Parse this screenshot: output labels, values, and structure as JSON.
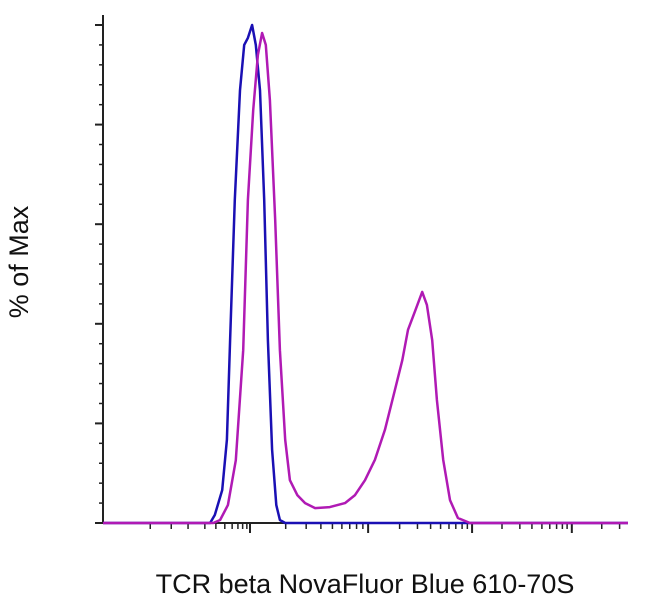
{
  "chart_data": {
    "type": "line",
    "xlabel": "TCR beta NovaFluor Blue 610-70S",
    "ylabel": "% of Max",
    "xlim": [
      0,
      100
    ],
    "ylim": [
      0,
      100
    ],
    "xticks": [
      28.0,
      50.5,
      70.3,
      89.3
    ],
    "xminorticks": [
      9.0,
      13.0,
      16.2,
      19.4,
      21.5,
      23.2,
      24.6,
      25.7,
      26.6,
      27.4,
      34.8,
      38.7,
      41.5,
      43.7,
      45.5,
      47.0,
      48.3,
      49.5,
      56.5,
      59.9,
      62.4,
      64.3,
      65.9,
      67.2,
      68.4,
      69.4,
      76.0,
      79.4,
      81.7,
      83.6,
      85.1,
      86.4,
      87.5,
      88.4,
      95.0,
      98.4
    ],
    "yticks": [
      0,
      20,
      40,
      60,
      80,
      100
    ],
    "yminorticks": [
      4,
      8,
      12,
      16,
      24,
      28,
      32,
      36,
      44,
      48,
      52,
      56,
      64,
      68,
      72,
      76,
      84,
      88,
      92,
      96
    ],
    "series": [
      {
        "color": "#1a10b4",
        "x": [
          0,
          20.4,
          21.3,
          22.7,
          23.6,
          24.2,
          25.1,
          26.1,
          26.9,
          27.6,
          28.4,
          29.1,
          29.9,
          30.7,
          31.4,
          32.2,
          33.0,
          33.7,
          34.7,
          100
        ],
        "values": [
          0,
          0,
          1.6,
          6.6,
          16.7,
          36.7,
          64.9,
          86.9,
          96.0,
          97.4,
          100,
          96.0,
          86.9,
          64.9,
          36.7,
          14.7,
          3.6,
          0.6,
          0,
          0
        ]
      },
      {
        "color": "#b01ab4",
        "x": [
          0,
          21.0,
          22.3,
          23.8,
          25.3,
          26.7,
          27.6,
          28.6,
          29.5,
          30.3,
          31.0,
          31.8,
          32.8,
          33.7,
          34.7,
          35.6,
          37.0,
          38.5,
          40.4,
          43.2,
          46.1,
          48.0,
          49.9,
          51.8,
          53.7,
          55.6,
          57.0,
          58.1,
          59.4,
          60.8,
          61.7,
          62.7,
          63.6,
          64.8,
          66.1,
          67.6,
          69.9,
          100
        ],
        "values": [
          0,
          0,
          0.6,
          3.6,
          12.6,
          34.7,
          64.9,
          82.9,
          94.0,
          98.4,
          96.0,
          84.9,
          60.8,
          34.7,
          16.7,
          8.6,
          5.6,
          4.0,
          3.0,
          3.2,
          4.0,
          5.6,
          8.6,
          12.7,
          18.7,
          26.7,
          32.7,
          38.8,
          42.4,
          46.4,
          43.8,
          36.7,
          24.7,
          12.7,
          4.6,
          1.0,
          0,
          0
        ]
      }
    ]
  }
}
